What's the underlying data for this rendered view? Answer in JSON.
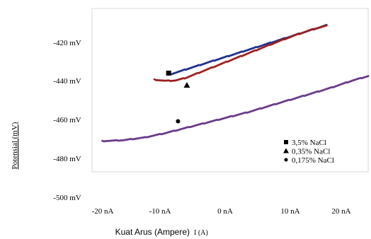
{
  "chart_data": {
    "type": "scatter",
    "ylabel": "Potensial (mV)",
    "xlabel": "Kuat Arus (Ampere)",
    "xlabel_suffix": "I (A)",
    "x_ticks": [
      {
        "value": -20,
        "label": "-20 nA"
      },
      {
        "value": -10,
        "label": "-10 nA"
      },
      {
        "value": 0,
        "label": "0 nA"
      },
      {
        "value": 10,
        "label": "10 nA"
      },
      {
        "value": 20,
        "label": "20 nA"
      }
    ],
    "y_ticks": [
      {
        "value": -420,
        "label": "-420 mV"
      },
      {
        "value": -440,
        "label": "-440 mV"
      },
      {
        "value": -460,
        "label": "-460 mV"
      },
      {
        "value": -480,
        "label": "-480 mV"
      },
      {
        "value": -500,
        "label": "-500 mV"
      }
    ],
    "xlim": [
      -25,
      28
    ],
    "ylim": [
      -505,
      -412
    ],
    "grid": false,
    "legend_position": "bottom-right",
    "series": [
      {
        "name": "3,5% NaCl",
        "marker": "square",
        "color": "#1f2f8f",
        "x": [
          -10.0,
          -7.0,
          -4.0,
          -1.0,
          2.0,
          5.0,
          8.0,
          11.0,
          14.0,
          17.0,
          20.0
        ],
        "y": [
          -449.5,
          -446.7,
          -443.9,
          -441.1,
          -438.3,
          -435.5,
          -432.7,
          -429.9,
          -427.1,
          -424.3,
          -421.5
        ]
      },
      {
        "name": "0,35% NaCl",
        "marker": "triangle",
        "color": "#9e1f1f",
        "x": [
          -13.0,
          -11.0,
          -9.0,
          -7.0,
          -4.0,
          -1.0,
          2.0,
          5.0,
          8.0,
          11.0,
          14.0,
          17.0,
          20.0
        ],
        "y": [
          -452.5,
          -453.2,
          -453.0,
          -451.5,
          -448.0,
          -444.5,
          -441.0,
          -437.5,
          -434.0,
          -430.5,
          -427.2,
          -424.2,
          -421.8
        ]
      },
      {
        "name": "0,175% NaCl",
        "marker": "circle",
        "color": "#6a3a8a",
        "x": [
          -23.0,
          -19.0,
          -15.0,
          -11.0,
          -7.0,
          -3.0,
          1.0,
          5.0,
          9.0,
          13.0,
          17.0,
          21.0,
          25.0,
          28.0
        ],
        "y": [
          -487.5,
          -487.0,
          -485.5,
          -483.0,
          -480.0,
          -477.0,
          -474.0,
          -471.0,
          -467.5,
          -464.0,
          -460.5,
          -457.0,
          -453.0,
          -450.5
        ]
      }
    ],
    "annotations": [
      {
        "marker": "square",
        "x": -10.3,
        "y": -448.8
      },
      {
        "marker": "triangle",
        "x": -6.8,
        "y": -455.7
      },
      {
        "marker": "circle",
        "x": -8.5,
        "y": -476.2
      }
    ]
  }
}
